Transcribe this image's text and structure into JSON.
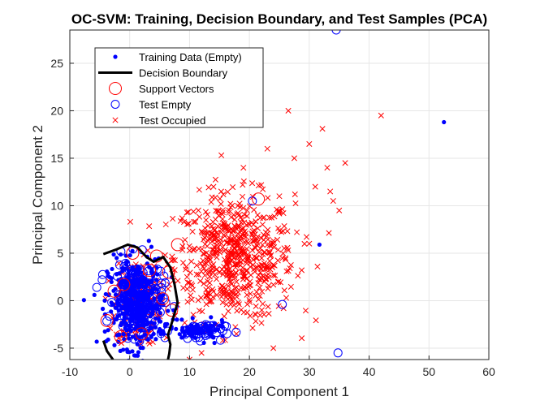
{
  "chart_data": {
    "type": "scatter",
    "title": "OC-SVM: Training, Decision Boundary, and Test Samples (PCA)",
    "xlabel": "Principal Component 1",
    "ylabel": "Principal Component 2",
    "xlim": [
      -10,
      60
    ],
    "ylim": [
      -6.2,
      28.5
    ],
    "xticks": [
      -10,
      0,
      10,
      20,
      30,
      40,
      50,
      60
    ],
    "yticks": [
      -5,
      0,
      5,
      10,
      15,
      20,
      25
    ],
    "grid": true,
    "legend_position": "top-left",
    "colors": {
      "red": "#ff0000",
      "blue": "#0000ff",
      "boundary": "#000000"
    },
    "legend": [
      {
        "label": "Training Data (Empty)",
        "marker": "dot",
        "color": "#0000ff"
      },
      {
        "label": "Decision Boundary",
        "marker": "line",
        "color": "#000000"
      },
      {
        "label": "Support Vectors",
        "marker": "circle-large",
        "color": "#ff0000"
      },
      {
        "label": "Test Empty",
        "marker": "circle",
        "color": "#0000ff"
      },
      {
        "label": "Test Occupied",
        "marker": "x",
        "color": "#ff0000"
      }
    ],
    "series": [
      {
        "name": "Training Data (Empty)",
        "marker": "dot",
        "color": "#0000ff",
        "clusters": [
          {
            "center": [
              1.0,
              -0.3
            ],
            "spread": [
              2.3,
              2.3
            ],
            "count": 420
          },
          {
            "center": [
              11.5,
              -3.2
            ],
            "spread": [
              2.4,
              0.5
            ],
            "count": 70
          }
        ],
        "points": [
          [
            52.5,
            18.8
          ],
          [
            31.7,
            5.9
          ],
          [
            -3.6,
            -4.1
          ],
          [
            3.2,
            6.3
          ],
          [
            7.9,
            -2.0
          ]
        ]
      },
      {
        "name": "Decision Boundary",
        "marker": "line",
        "color": "#000000",
        "segments": [
          [
            [
              -4.4,
              4.9
            ],
            [
              -2.2,
              5.4
            ],
            [
              -0.3,
              5.9
            ],
            [
              1.3,
              5.6
            ],
            [
              2.8,
              4.6
            ],
            [
              4.0,
              4.1
            ],
            [
              5.6,
              4.6
            ],
            [
              6.8,
              3.5
            ],
            [
              7.5,
              1.7
            ],
            [
              8.0,
              -0.2
            ],
            [
              7.2,
              -2.0
            ],
            [
              6.4,
              -3.6
            ],
            [
              6.8,
              -4.6
            ],
            [
              6.6,
              -5.6
            ],
            [
              6.4,
              -6.2
            ]
          ],
          [
            [
              -4.4,
              -4.2
            ],
            [
              -3.8,
              -5.3
            ],
            [
              -2.8,
              -6.2
            ]
          ]
        ]
      },
      {
        "name": "Support Vectors",
        "marker": "circle-large",
        "color": "#ff0000",
        "points": [
          [
            8.0,
            5.9
          ],
          [
            4.5,
            4.7
          ],
          [
            3.3,
            3.2
          ],
          [
            -2.6,
            1.0
          ],
          [
            -3.8,
            -2.1
          ],
          [
            -1.5,
            -3.8
          ],
          [
            2.0,
            -3.5
          ],
          [
            5.5,
            0.2
          ],
          [
            7.0,
            -1.0
          ],
          [
            0.5,
            5.0
          ],
          [
            6.5,
            3.0
          ],
          [
            21.5,
            10.7
          ],
          [
            -1.0,
            1.7
          ]
        ]
      },
      {
        "name": "Test Empty",
        "marker": "circle",
        "color": "#0000ff",
        "clusters": [
          {
            "center": [
              1.5,
              0.2
            ],
            "spread": [
              2.0,
              2.0
            ],
            "count": 160
          },
          {
            "center": [
              11.5,
              -3.2
            ],
            "spread": [
              2.2,
              0.45
            ],
            "count": 45
          }
        ],
        "points": [
          [
            34.5,
            28.5
          ],
          [
            34.8,
            -5.5
          ],
          [
            25.5,
            -0.4
          ],
          [
            20.5,
            10.5
          ],
          [
            -5.5,
            1.4
          ],
          [
            -4.6,
            2.2
          ]
        ]
      },
      {
        "name": "Test Occupied",
        "marker": "x",
        "color": "#ff0000",
        "clusters": [
          {
            "center": [
              17.5,
              4.5
            ],
            "spread": [
              5.0,
              3.3
            ],
            "count": 640
          },
          {
            "center": [
              1.2,
              -0.3
            ],
            "spread": [
              1.8,
              2.2
            ],
            "count": 180
          }
        ],
        "points": [
          [
            42.0,
            19.5
          ],
          [
            26.5,
            20.0
          ],
          [
            36.0,
            14.5
          ],
          [
            32.2,
            18.1
          ],
          [
            33.0,
            14.0
          ],
          [
            34.0,
            10.5
          ],
          [
            30.0,
            16.5
          ],
          [
            25.0,
            11.0
          ],
          [
            31.0,
            12.0
          ],
          [
            10.0,
            -6.2
          ],
          [
            12.0,
            -5.5
          ],
          [
            24.0,
            -5.0
          ],
          [
            30.0,
            6.0
          ],
          [
            35.0,
            9.5
          ],
          [
            27.5,
            15.0
          ],
          [
            23.0,
            16.0
          ],
          [
            19.0,
            14.0
          ],
          [
            14.0,
            12.0
          ],
          [
            33.5,
            11.5
          ]
        ]
      }
    ]
  }
}
